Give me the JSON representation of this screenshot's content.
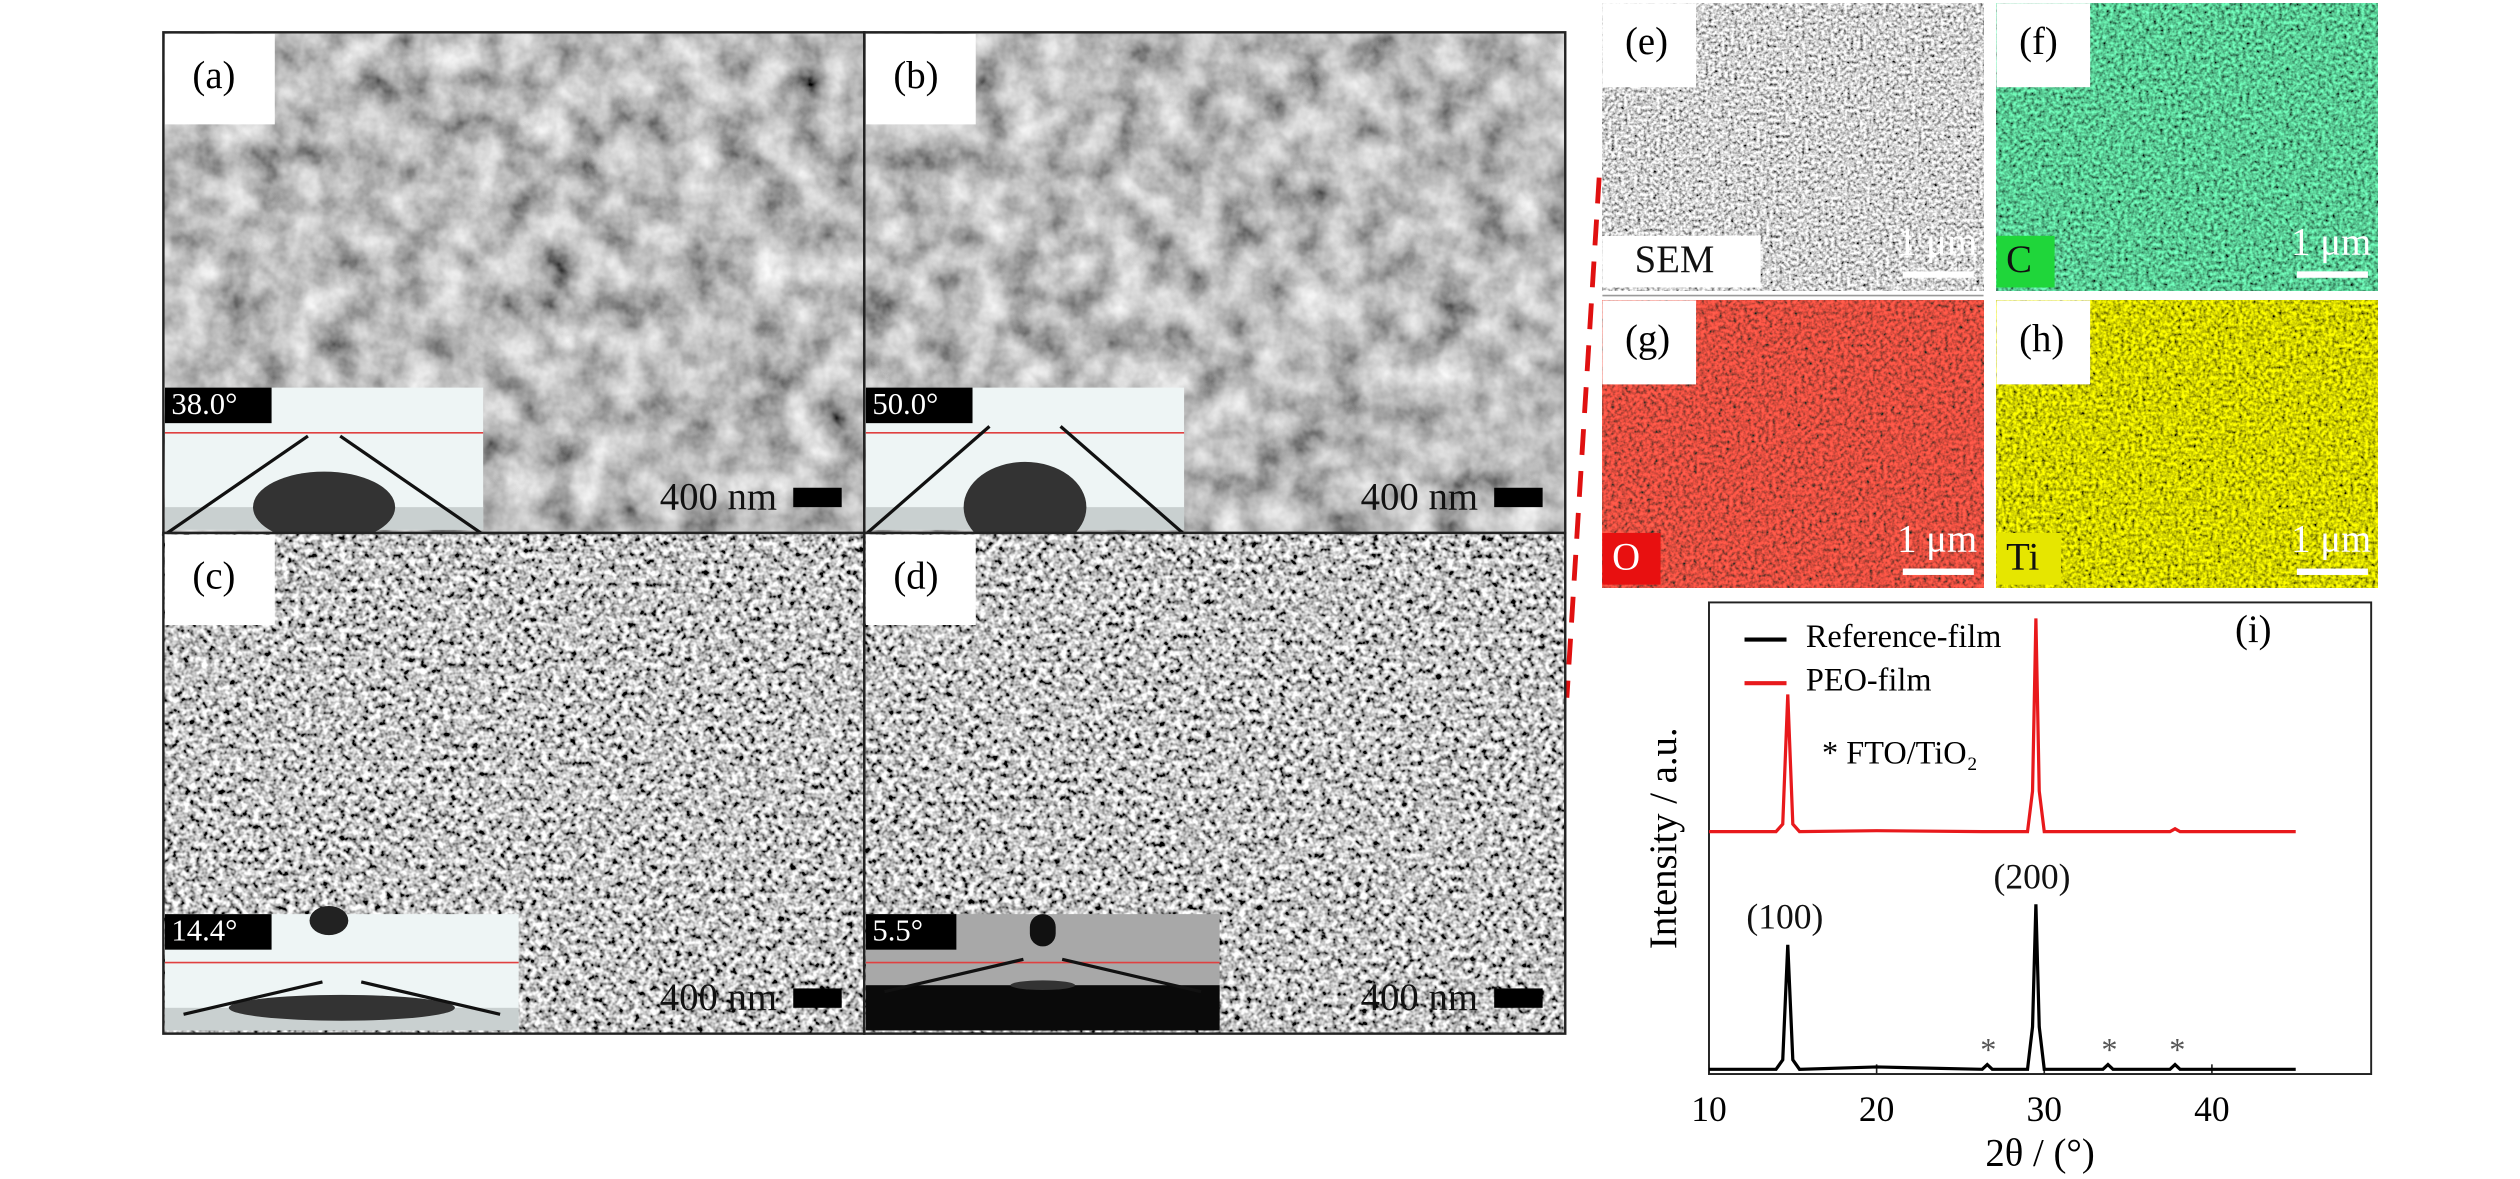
{
  "panels": [
    {
      "label": "(a)",
      "angle": "38.0°",
      "scale": "400 nm"
    },
    {
      "label": "(b)",
      "angle": "50.0°",
      "scale": "400 nm"
    },
    {
      "label": "(c)",
      "angle": "14.4°",
      "scale": "400 nm"
    },
    {
      "label": "(d)",
      "angle": "5.5°",
      "scale": "400 nm"
    }
  ],
  "maps": [
    {
      "label": "(e)",
      "element": "SEM",
      "scale": "1 μm"
    },
    {
      "label": "(f)",
      "element": "C",
      "scale": "1 μm"
    },
    {
      "label": "(g)",
      "element": "O",
      "scale": "1 μm"
    },
    {
      "label": "(h)",
      "element": "Ti",
      "scale": "1 μm"
    }
  ],
  "chart_data": {
    "type": "line",
    "panel_label": "(i)",
    "xlabel": "2θ / (°)",
    "ylabel": "Intensity / a.u.",
    "xlim": [
      10,
      49.5
    ],
    "ylim": [
      0,
      100
    ],
    "xticks": [
      10,
      20,
      30,
      40
    ],
    "x": [
      10,
      14,
      14.4,
      14.7,
      15.0,
      15.4,
      20,
      26.3,
      26.6,
      26.9,
      29.0,
      29.3,
      29.5,
      29.7,
      30.0,
      33.5,
      33.8,
      34.1,
      37.5,
      37.8,
      38.1,
      45
    ],
    "series": [
      {
        "name": "Reference-film",
        "color": "#000000",
        "values": [
          1,
          1,
          3,
          27.4,
          3,
          1,
          1.5,
          1,
          2,
          1,
          1,
          10,
          36,
          10,
          1,
          1,
          2,
          1,
          1,
          2,
          1,
          1
        ]
      },
      {
        "name": "PEO-film",
        "color": "#e8191c",
        "values": [
          51.4,
          51.4,
          53,
          80.5,
          53,
          51.4,
          51.6,
          51.4,
          51.4,
          51.4,
          51.4,
          60,
          96.6,
          60,
          51.4,
          51.4,
          51.4,
          51.4,
          51.4,
          52,
          51.4,
          51.4
        ]
      }
    ],
    "legend_note": "* FTO/TiO₂",
    "annotations": [
      "(100)",
      "(200)",
      "*",
      "*",
      "*"
    ]
  }
}
